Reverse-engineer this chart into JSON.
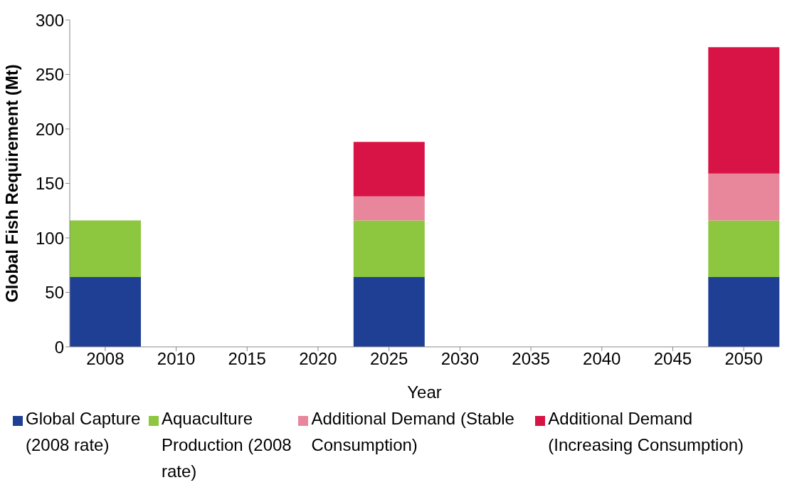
{
  "chart_data": {
    "type": "bar",
    "stacked": true,
    "xlabel": "Year",
    "ylabel": "Global Fish Requirement (Mt)",
    "categories": [
      "2008",
      "2010",
      "2015",
      "2020",
      "2025",
      "2030",
      "2035",
      "2040",
      "2045",
      "2050"
    ],
    "series": [
      {
        "name": "Global Capture (2008 rate)",
        "color": "#1f3f94",
        "values": [
          64,
          null,
          null,
          null,
          64,
          null,
          null,
          null,
          null,
          64
        ]
      },
      {
        "name": "Aquaculture Production (2008 rate)",
        "color": "#8dc63f",
        "values": [
          52,
          null,
          null,
          null,
          52,
          null,
          null,
          null,
          null,
          52
        ]
      },
      {
        "name": "Additional Demand (Stable Consumption)",
        "color": "#e8879c",
        "values": [
          null,
          null,
          null,
          null,
          22,
          null,
          null,
          null,
          null,
          43
        ]
      },
      {
        "name": "Additional Demand (Increasing Consumption)",
        "color": "#d81345",
        "values": [
          null,
          null,
          null,
          null,
          50,
          null,
          null,
          null,
          null,
          116
        ]
      }
    ],
    "ylim": [
      0,
      300
    ],
    "yticks": [
      0,
      50,
      100,
      150,
      200,
      250,
      300
    ],
    "grid": false,
    "legend": "bottom"
  }
}
